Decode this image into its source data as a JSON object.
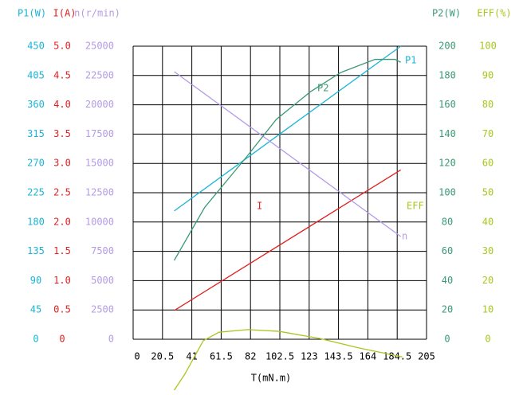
{
  "chart_data": {
    "type": "line",
    "x_label": "T(mN.m)",
    "xlim": [
      0,
      205
    ],
    "xticks": [
      0,
      20.5,
      41,
      61.5,
      82,
      102.5,
      123,
      143.5,
      164,
      184.5,
      205
    ],
    "grid": true,
    "y_axes": [
      {
        "title": "P1(W)",
        "side": "left",
        "color": "#19b5d6",
        "lim": [
          0,
          450
        ],
        "ticks": [
          0,
          45,
          90,
          135,
          180,
          225,
          270,
          315,
          360,
          405,
          450
        ],
        "series": {
          "name": "P1",
          "x": [
            28.7,
            108,
            187
          ],
          "values": [
            197,
            324,
            450
          ]
        }
      },
      {
        "title": "I(A)",
        "side": "left",
        "color": "#e02020",
        "lim": [
          0,
          5
        ],
        "ticks": [
          0,
          0.5,
          {
            "value": 1,
            "label": "1.0"
          },
          1.5,
          {
            "value": 2,
            "label": "2.0"
          },
          2.5,
          {
            "value": 3,
            "label": "3.0"
          },
          3.5,
          {
            "value": 4,
            "label": "4.0"
          },
          4.5,
          {
            "value": 5,
            "label": "5.0"
          }
        ],
        "series": {
          "name": "I",
          "x": [
            28.7,
            187
          ],
          "values": [
            0.49,
            2.89
          ]
        }
      },
      {
        "title": "n(r/min)",
        "side": "left",
        "color": "#b49be6",
        "lim": [
          0,
          25000
        ],
        "ticks": [
          0,
          2500,
          5000,
          7500,
          10000,
          12500,
          15000,
          17500,
          20000,
          22500,
          25000
        ],
        "series": {
          "name": "n",
          "x": [
            28.7,
            187
          ],
          "values": [
            22826,
            8764
          ]
        }
      },
      {
        "title": "P2(W)",
        "side": "right",
        "color": "#3a9a74",
        "lim": [
          0,
          200
        ],
        "ticks": [
          0,
          20,
          40,
          60,
          80,
          100,
          120,
          140,
          160,
          180,
          200
        ],
        "series": {
          "name": "P2",
          "x": [
            28.7,
            50,
            79.7,
            100,
            124,
            145,
            169,
            183,
            187
          ],
          "values": [
            53.8,
            90,
            125,
            150,
            169,
            182,
            191,
            191,
            189
          ]
        }
      },
      {
        "title": "EFF(%)",
        "side": "right",
        "color": "#a6c81e",
        "lim": [
          0,
          100
        ],
        "ticks": [
          0,
          10,
          20,
          30,
          40,
          50,
          60,
          70,
          80,
          90,
          100
        ],
        "series": {
          "name": "EFF",
          "x": [
            28.7,
            36,
            49,
            60,
            80,
            102,
            130,
            158,
            188
          ],
          "values": [
            -17.4,
            -12,
            -0.5,
            2.4,
            3.3,
            2.7,
            0.3,
            -3,
            -6
          ]
        }
      }
    ]
  }
}
